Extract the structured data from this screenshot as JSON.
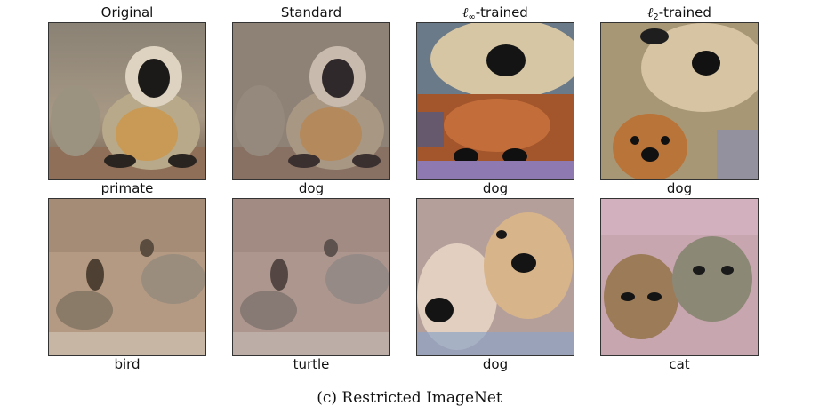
{
  "columns": [
    {
      "prefix": "",
      "sub": "",
      "suffix": "Original"
    },
    {
      "prefix": "",
      "sub": "",
      "suffix": "Standard"
    },
    {
      "prefix": "ℓ",
      "sub": "∞",
      "suffix": "-trained"
    },
    {
      "prefix": "ℓ",
      "sub": "2",
      "suffix": "-trained"
    }
  ],
  "rows": [
    {
      "labels": [
        "primate",
        "dog",
        "dog",
        "dog"
      ]
    },
    {
      "labels": [
        "bird",
        "turtle",
        "dog",
        "cat"
      ]
    }
  ],
  "caption": "(c) Restricted ImageNet"
}
